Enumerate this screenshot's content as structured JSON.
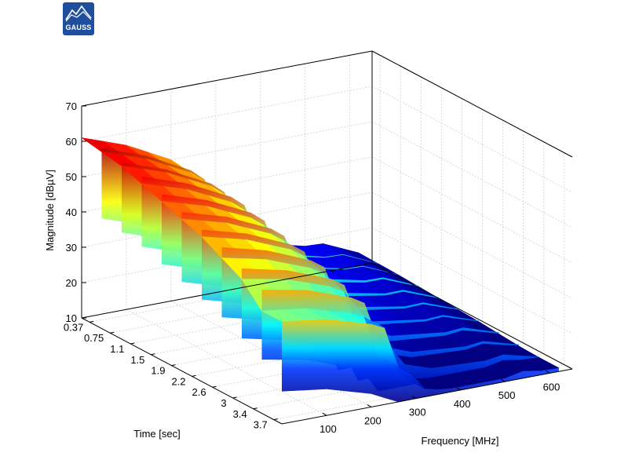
{
  "logo": {
    "text": "GAUSS"
  },
  "chart_data": {
    "type": "surface",
    "zlabel": "Magnitude [dBµV]",
    "ylabel": "Time [sec]",
    "xlabel": "Frequency [MHz]",
    "zlim": [
      10,
      70
    ],
    "z_ticks": [
      "10",
      "20",
      "30",
      "40",
      "50",
      "60",
      "70"
    ],
    "time_ticks": [
      "0.37",
      "0.75",
      "1.1",
      "1.5",
      "1.9",
      "2.2",
      "2.6",
      "3",
      "3.4",
      "3.7"
    ],
    "freq_ticks": [
      "100",
      "200",
      "300",
      "400",
      "500",
      "600"
    ],
    "grid": true,
    "colormap": "jet",
    "freq_profile_mhz": [
      0,
      50,
      100,
      150,
      200,
      230,
      260,
      290,
      320,
      350,
      380,
      420,
      460,
      500,
      540,
      580,
      620
    ],
    "freq_profile_dbuv": [
      57,
      55,
      53,
      50,
      47,
      44,
      34,
      30,
      24,
      22,
      20,
      19,
      18,
      17,
      17,
      15,
      13
    ],
    "time_offset_db": [
      4,
      3,
      2,
      0,
      -2,
      -4,
      -6,
      -9,
      -12,
      -18
    ]
  }
}
